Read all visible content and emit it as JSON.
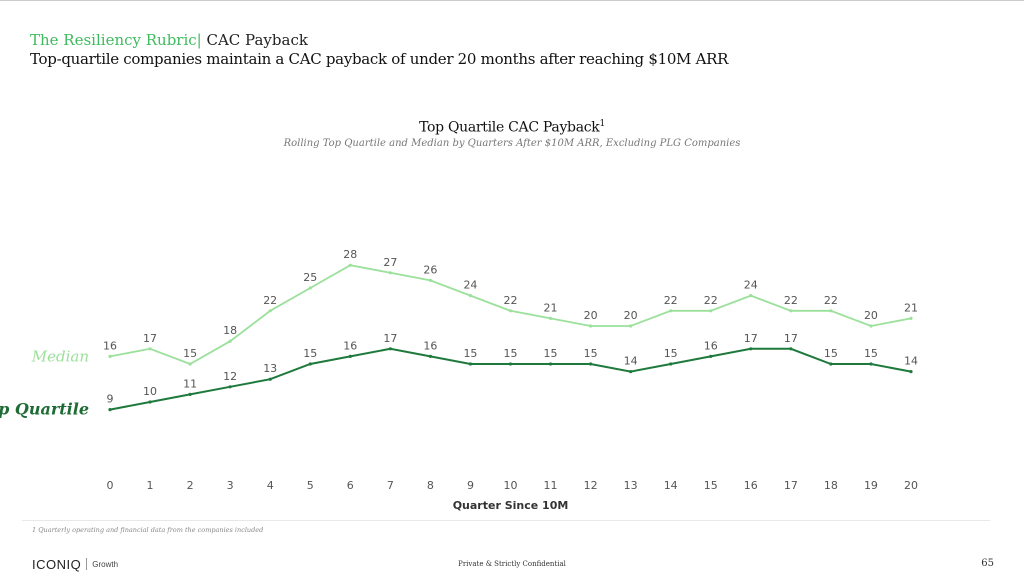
{
  "header": {
    "kicker_green": "The Resiliency Rubric|",
    "kicker_rest": " CAC Payback",
    "headline": "Top-quartile companies maintain a CAC payback of under 20 months after reaching $10M ARR"
  },
  "chart_data": {
    "type": "line",
    "title": "Top Quartile CAC Payback",
    "title_superscript": "1",
    "subtitle": "Rolling Top Quartile and Median by Quarters After $10M ARR, Excluding PLG Companies",
    "xlabel": "Quarter Since 10M",
    "ylabel": "",
    "x": [
      0,
      1,
      2,
      3,
      4,
      5,
      6,
      7,
      8,
      9,
      10,
      11,
      12,
      13,
      14,
      15,
      16,
      17,
      18,
      19,
      20
    ],
    "grid": false,
    "data_labels": true,
    "legend": "inline-left",
    "series": [
      {
        "name": "Median",
        "color": "#9be09b",
        "values": [
          16,
          17,
          15,
          18,
          22,
          25,
          28,
          27,
          26,
          24,
          22,
          21,
          20,
          20,
          22,
          22,
          24,
          22,
          22,
          20,
          21
        ]
      },
      {
        "name": "Top Quartile",
        "color": "#1e7a3c",
        "values": [
          9,
          10,
          11,
          12,
          13,
          15,
          16,
          17,
          16,
          15,
          15,
          15,
          15,
          14,
          15,
          16,
          17,
          17,
          15,
          15,
          14
        ]
      }
    ]
  },
  "footer": {
    "footnote": "1 Quarterly operating and financial data from the companies included",
    "logo_main": "ICONIQ",
    "logo_sub": "Growth",
    "confidential": "Private & Strictly Confidential",
    "page_number": "65"
  }
}
